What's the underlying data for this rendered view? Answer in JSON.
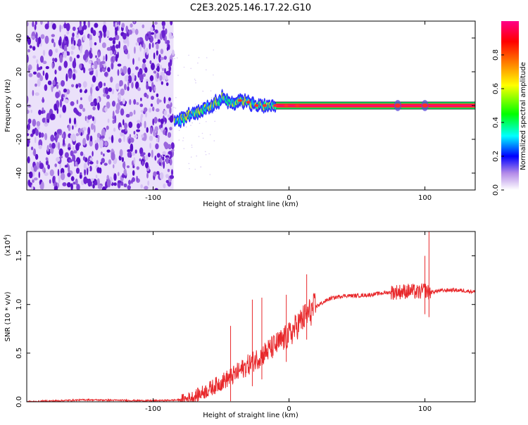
{
  "title": "C2E3.2025.146.17.22.G10",
  "chart_data": [
    {
      "type": "heatmap",
      "xlabel": "Height of straight line (km)",
      "ylabel": "Frequency (Hz)",
      "xlim": [
        -193,
        137
      ],
      "ylim": [
        -50,
        50
      ],
      "xticks": [
        -100,
        0,
        100
      ],
      "yticks": [
        -40,
        -20,
        0,
        20,
        40
      ],
      "colorbar": {
        "label": "Normalized spectral amplitude",
        "range": [
          0,
          1
        ],
        "ticks": [
          0.0,
          0.2,
          0.4,
          0.6,
          0.8
        ],
        "tick_labels": [
          "0.0",
          "0.2",
          "0.4",
          "0.6",
          "0.8"
        ],
        "colors": [
          "#ffffff",
          "#8a2be2",
          "#0000ff",
          "#00ffff",
          "#00ff00",
          "#ffff00",
          "#ff8000",
          "#ff0000",
          "#ff0088"
        ]
      },
      "noise_region_x": [
        -193,
        -85
      ],
      "signal_trace": {
        "x": [
          -84,
          -75,
          -65,
          -55,
          -48,
          -42,
          -36,
          -30,
          -24,
          -18,
          -10,
          0,
          10,
          40,
          80,
          100,
          137
        ],
        "y": [
          -10,
          -6,
          -3,
          1,
          5,
          1,
          3,
          2,
          0,
          0,
          0,
          0,
          0,
          0,
          0,
          0,
          0
        ]
      }
    },
    {
      "type": "line",
      "xlabel": "Height of straight line (km)",
      "ylabel": "SNR (10 * v/v)",
      "y_multiplier_label": "(x10",
      "y_multiplier_exp": "4",
      "xlim": [
        -193,
        137
      ],
      "ylim": [
        0,
        1.75
      ],
      "xticks": [
        -100,
        0,
        100
      ],
      "yticks": [
        0.0,
        0.5,
        1.0,
        1.5
      ],
      "ytick_labels": [
        "0.0",
        "0.5",
        "1.0",
        "1.5"
      ],
      "series": [
        {
          "color": "#e8282b",
          "x": [
            -193,
            -150,
            -100,
            -78,
            -70,
            -60,
            -50,
            -40,
            -30,
            -20,
            -10,
            0,
            10,
            20,
            30,
            40,
            50,
            60,
            70,
            80,
            90,
            95,
            100,
            103,
            110,
            120,
            130,
            137
          ],
          "y": [
            0.0,
            0.02,
            0.01,
            0.02,
            0.05,
            0.12,
            0.2,
            0.28,
            0.38,
            0.48,
            0.58,
            0.68,
            0.85,
            0.98,
            1.06,
            1.09,
            1.09,
            1.1,
            1.12,
            1.13,
            1.14,
            1.12,
            1.15,
            1.12,
            1.14,
            1.15,
            1.14,
            1.13
          ]
        }
      ],
      "spikes": {
        "x": [
          -43,
          -27,
          -20,
          -2,
          13,
          100,
          103
        ],
        "y": [
          0.78,
          1.05,
          1.07,
          1.1,
          1.31,
          1.5,
          1.78
        ]
      }
    }
  ]
}
